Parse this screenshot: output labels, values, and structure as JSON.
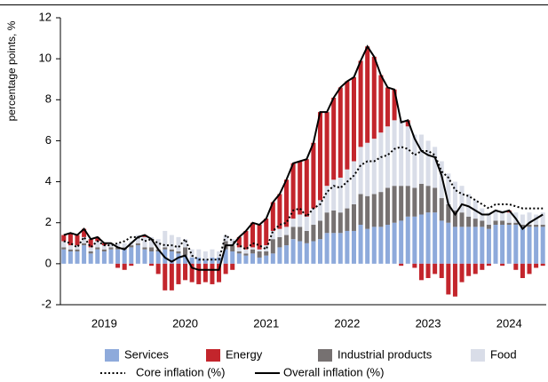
{
  "chart_data": {
    "type": "stacked-bar-line",
    "y_label": "percentage points, %",
    "categories": [
      null,
      null,
      null,
      null,
      null,
      null,
      "2019",
      null,
      null,
      null,
      null,
      null,
      null,
      null,
      null,
      null,
      null,
      null,
      "2020",
      null,
      null,
      null,
      null,
      null,
      null,
      null,
      null,
      null,
      null,
      null,
      "2021",
      null,
      null,
      null,
      null,
      null,
      null,
      null,
      null,
      null,
      null,
      null,
      "2022",
      null,
      null,
      null,
      null,
      null,
      null,
      null,
      null,
      null,
      null,
      null,
      "2023",
      null,
      null,
      null,
      null,
      null,
      null,
      null,
      null,
      null,
      null,
      null,
      "2024",
      null,
      null,
      null,
      null,
      null
    ],
    "ylim": [
      -2,
      12
    ],
    "yticks": [
      -2,
      0,
      2,
      4,
      6,
      8,
      10,
      12
    ],
    "series": [
      {
        "name": "Services",
        "type": "bar",
        "color": "#8eaadb",
        "values": [
          0.7,
          0.6,
          0.6,
          0.9,
          0.5,
          0.7,
          0.6,
          0.7,
          0.7,
          0.7,
          0.8,
          0.9,
          0.7,
          0.6,
          0.6,
          0.7,
          0.6,
          0.5,
          0.4,
          0.3,
          0.3,
          0.2,
          0.3,
          0.3,
          0.7,
          0.6,
          0.5,
          0.4,
          0.5,
          0.3,
          0.4,
          0.5,
          0.8,
          0.9,
          1.2,
          1.1,
          1.0,
          1.1,
          1.2,
          1.5,
          1.5,
          1.5,
          1.6,
          1.6,
          1.9,
          1.7,
          1.8,
          1.8,
          1.9,
          2.0,
          2.1,
          2.3,
          2.3,
          2.4,
          2.5,
          2.5,
          2.1,
          2.0,
          1.8,
          1.8,
          1.8,
          1.8,
          1.8,
          1.7,
          1.9,
          1.9,
          1.9,
          1.9,
          1.8,
          1.8,
          1.8,
          1.8
        ]
      },
      {
        "name": "Energy",
        "type": "bar",
        "color": "#c3252c",
        "values": [
          0.3,
          0.6,
          0.5,
          0.4,
          0.4,
          0.2,
          0.1,
          0.0,
          -0.2,
          -0.3,
          -0.1,
          0.0,
          0.1,
          -0.1,
          -0.5,
          -1.3,
          -1.3,
          -1.0,
          -0.8,
          -0.9,
          -1.0,
          -0.9,
          -1.0,
          -0.9,
          -0.5,
          -0.3,
          0.5,
          0.9,
          1.2,
          1.2,
          1.3,
          1.4,
          1.7,
          2.3,
          2.7,
          2.6,
          2.8,
          3.2,
          4.3,
          3.6,
          4.0,
          4.4,
          4.3,
          4.1,
          4.2,
          4.7,
          4.0,
          2.8,
          1.9,
          1.5,
          -0.1,
          0.3,
          -0.2,
          -0.8,
          -0.7,
          -0.5,
          -0.7,
          -1.5,
          -1.6,
          -0.9,
          -0.6,
          -0.5,
          -0.3,
          -0.1,
          0.0,
          -0.1,
          0.1,
          -0.3,
          -0.7,
          -0.5,
          -0.2,
          -0.1
        ]
      },
      {
        "name": "Industrial products",
        "type": "bar",
        "color": "#767171",
        "values": [
          0.1,
          0.1,
          0.1,
          0.1,
          0.1,
          0.1,
          0.1,
          0.1,
          0.1,
          0.1,
          0.1,
          0.1,
          0.1,
          0.2,
          0.1,
          0.1,
          0.1,
          0.1,
          0.4,
          0.0,
          0.0,
          0.0,
          0.0,
          0.0,
          0.4,
          0.3,
          0.1,
          0.1,
          0.2,
          0.3,
          0.2,
          0.7,
          0.5,
          0.5,
          0.6,
          0.7,
          0.6,
          0.8,
          0.9,
          1.0,
          1.1,
          1.0,
          1.1,
          1.3,
          1.5,
          1.6,
          1.6,
          1.7,
          1.8,
          1.8,
          1.7,
          1.5,
          1.4,
          1.5,
          1.3,
          1.2,
          1.1,
          0.9,
          0.8,
          0.7,
          0.5,
          0.4,
          0.3,
          0.2,
          0.2,
          0.2,
          0.1,
          0.1,
          0.1,
          0.1,
          0.1,
          0.1
        ]
      },
      {
        "name": "Food",
        "type": "bar",
        "color": "#d9dde8",
        "values": [
          0.3,
          0.2,
          0.2,
          0.3,
          0.2,
          0.3,
          0.2,
          0.2,
          0.2,
          0.2,
          0.2,
          0.4,
          0.5,
          0.5,
          0.5,
          0.8,
          0.7,
          0.7,
          0.4,
          0.4,
          0.4,
          0.4,
          0.4,
          0.3,
          0.3,
          0.3,
          0.2,
          0.2,
          0.1,
          0.1,
          0.3,
          0.4,
          0.4,
          0.4,
          0.4,
          0.6,
          0.7,
          0.8,
          1.0,
          1.3,
          1.5,
          1.7,
          1.9,
          2.1,
          2.3,
          2.6,
          2.7,
          2.9,
          3.0,
          3.2,
          3.2,
          2.9,
          2.6,
          2.4,
          2.2,
          2.0,
          1.8,
          1.5,
          1.4,
          1.3,
          1.1,
          0.9,
          0.6,
          0.6,
          0.5,
          0.5,
          0.5,
          0.5,
          0.5,
          0.6,
          0.5,
          0.6
        ]
      },
      {
        "name": "Core inflation (%)",
        "type": "line",
        "dash": "dotted",
        "color": "#000000",
        "values": [
          1.1,
          1.0,
          0.8,
          1.3,
          0.8,
          1.1,
          0.9,
          0.9,
          1.0,
          1.1,
          1.3,
          1.3,
          1.1,
          1.2,
          1.0,
          0.9,
          0.9,
          0.8,
          1.2,
          0.4,
          0.2,
          0.2,
          0.2,
          0.2,
          1.4,
          1.1,
          0.9,
          0.7,
          1.0,
          0.9,
          0.7,
          1.6,
          1.9,
          2.0,
          2.6,
          2.7,
          2.3,
          2.7,
          2.9,
          3.5,
          3.8,
          3.7,
          4.0,
          4.3,
          4.8,
          5.0,
          5.0,
          5.2,
          5.3,
          5.6,
          5.7,
          5.6,
          5.3,
          5.5,
          5.5,
          5.3,
          4.5,
          4.2,
          3.6,
          3.4,
          3.3,
          3.1,
          2.9,
          2.7,
          2.9,
          2.9,
          2.9,
          2.8,
          2.7,
          2.7,
          2.7,
          2.7
        ]
      },
      {
        "name": "Overall inflation (%)",
        "type": "line",
        "dash": "solid",
        "color": "#000000",
        "values": [
          1.4,
          1.5,
          1.4,
          1.7,
          1.2,
          1.3,
          1.0,
          1.0,
          0.8,
          0.7,
          1.0,
          1.3,
          1.4,
          1.2,
          0.7,
          0.3,
          0.1,
          0.3,
          0.4,
          -0.2,
          -0.3,
          -0.3,
          -0.3,
          -0.3,
          0.9,
          0.9,
          1.3,
          1.6,
          2.0,
          1.9,
          2.2,
          3.0,
          3.4,
          4.1,
          4.9,
          5.0,
          5.1,
          5.9,
          7.4,
          7.4,
          8.1,
          8.6,
          8.9,
          9.1,
          9.9,
          10.6,
          10.1,
          9.2,
          8.6,
          8.5,
          6.9,
          7.0,
          6.1,
          5.5,
          5.3,
          5.2,
          4.3,
          2.9,
          2.4,
          2.9,
          2.8,
          2.6,
          2.4,
          2.4,
          2.6,
          2.5,
          2.6,
          2.2,
          1.7,
          2.0,
          2.2,
          2.4
        ]
      }
    ]
  }
}
